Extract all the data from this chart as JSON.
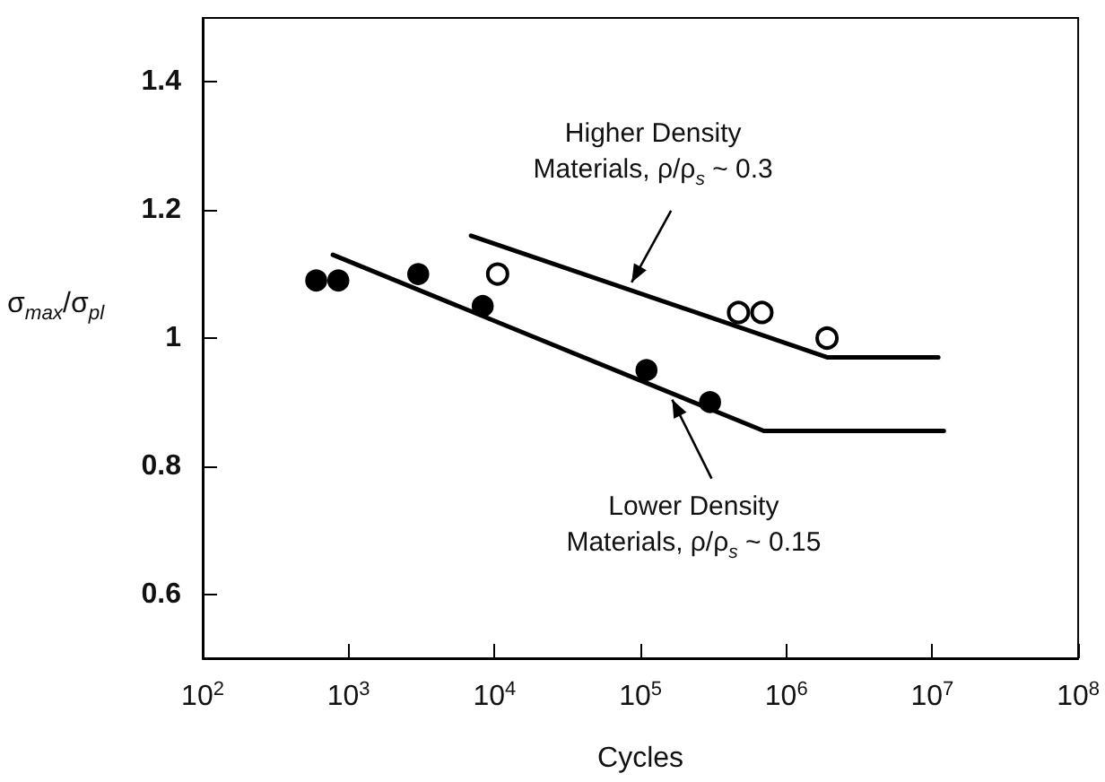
{
  "chart_data": {
    "type": "scatter",
    "xlabel": "Cycles",
    "ylabel": "σ$_{max}$/σ$_{pl}$",
    "log": "x",
    "xlim": [
      100,
      100000000
    ],
    "xticks": [
      {
        "value": 100,
        "label": "10$^{2}$"
      },
      {
        "value": 1000,
        "label": "10$^{3}$"
      },
      {
        "value": 10000,
        "label": "10$^{4}$"
      },
      {
        "value": 100000,
        "label": "10$^{5}$"
      },
      {
        "value": 1000000,
        "label": "10$^{6}$"
      },
      {
        "value": 10000000,
        "label": "10$^{7}$"
      },
      {
        "value": 100000000,
        "label": "10$^{8}$"
      }
    ],
    "ylim": [
      0.5,
      1.5
    ],
    "yticks": [
      0.6,
      0.8,
      1,
      1.2,
      1.4
    ],
    "grid": false,
    "series": [
      {
        "marker": "circle",
        "color": "#000000",
        "x": [
          600,
          850,
          3000,
          8300,
          110000,
          300000
        ],
        "values": [
          1.09,
          1.09,
          1.1,
          1.05,
          0.95,
          0.9
        ]
      },
      {
        "marker": "open circle",
        "color": "#000000",
        "x": [
          10500,
          470000,
          680000,
          1900000
        ],
        "values": [
          1.1,
          1.04,
          1.04,
          1.0
        ]
      },
      {
        "type": "line",
        "marker": "none",
        "line_style": "solid",
        "color": "#000000",
        "x": [
          6900,
          1900000,
          11000000
        ],
        "values": [
          1.16,
          0.97,
          0.97
        ]
      },
      {
        "type": "line",
        "marker": "none",
        "line_style": "solid",
        "color": "#000000",
        "x": [
          780,
          700000,
          12000000
        ],
        "values": [
          1.13,
          0.855,
          0.855
        ]
      }
    ],
    "annotations": [
      {
        "text": "Higher Density\nMaterials, ρ/ρ$_{s}$ ~ 0.3",
        "x": 87000,
        "y": 1.087
      },
      {
        "text": "Lower Density\nMaterials, ρ/ρ$_{s}$ ~ 0.15",
        "x": 165000,
        "y": 0.904
      }
    ]
  }
}
